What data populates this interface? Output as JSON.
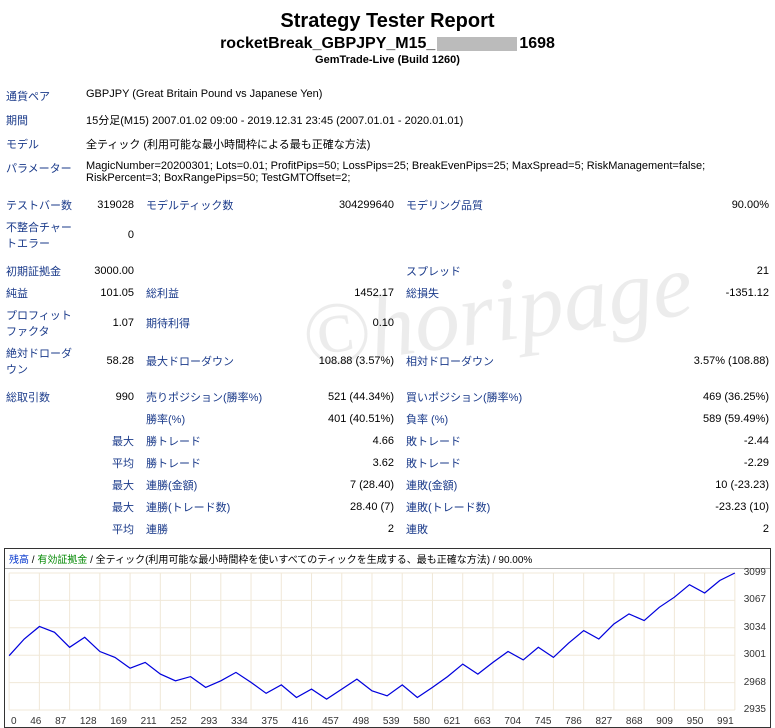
{
  "header": {
    "title": "Strategy Tester Report",
    "subtitle_pre": "rocketBreak_GBPJPY_M15_",
    "subtitle_post": "1698",
    "build": "GemTrade-Live (Build 1260)"
  },
  "info": {
    "pair_label": "通貨ペア",
    "pair_value": "GBPJPY (Great Britain Pound vs Japanese Yen)",
    "period_label": "期間",
    "period_value": "15分足(M15) 2007.01.02 09:00 - 2019.12.31 23:45 (2007.01.01 - 2020.01.01)",
    "model_label": "モデル",
    "model_value": "全ティック (利用可能な最小時間枠による最も正確な方法)",
    "param_label": "パラメーター",
    "param_value": "MagicNumber=20200301; Lots=0.01; ProfitPips=50; LossPips=25; BreakEvenPips=25; MaxSpread=5; RiskManagement=false; RiskPercent=3; BoxRangePips=50; TestGMTOffset=2;"
  },
  "r1": {
    "testbar_l": "テストバー数",
    "testbar_v": "319028",
    "modtick_l": "モデルティック数",
    "modtick_v": "304299640",
    "modq_l": "モデリング品質",
    "modq_v": "90.00%"
  },
  "r2": {
    "mismatch_l": "不整合チャートエラー",
    "mismatch_v": "0"
  },
  "r3": {
    "deposit_l": "初期証拠金",
    "deposit_v": "3000.00",
    "spread_l": "スプレッド",
    "spread_v": "21"
  },
  "r4": {
    "net_l": "純益",
    "net_v": "101.05",
    "gross_l": "総利益",
    "gross_v": "1452.17",
    "loss_l": "総損失",
    "loss_v": "-1351.12"
  },
  "r5": {
    "pf_l": "プロフィットファクタ",
    "pf_v": "1.07",
    "exp_l": "期待利得",
    "exp_v": "0.10"
  },
  "r6": {
    "absdd_l": "絶対ドローダウン",
    "absdd_v": "58.28",
    "maxdd_l": "最大ドローダウン",
    "maxdd_v": "108.88 (3.57%)",
    "reldd_l": "相対ドローダウン",
    "reldd_v": "3.57% (108.88)"
  },
  "r7": {
    "tot_l": "総取引数",
    "tot_v": "990",
    "sell_l": "売りポジション(勝率%)",
    "sell_v": "521 (44.34%)",
    "buy_l": "買いポジション(勝率%)",
    "buy_v": "469 (36.25%)"
  },
  "r8": {
    "win_l": "勝率(%)",
    "win_v": "401 (40.51%)",
    "lose_l": "負率 (%)",
    "lose_v": "589 (59.49%)"
  },
  "r9": {
    "tag": "最大",
    "wt_l": "勝トレード",
    "wt_v": "4.66",
    "lt_l": "敗トレード",
    "lt_v": "-2.44"
  },
  "r10": {
    "tag": "平均",
    "wt_l": "勝トレード",
    "wt_v": "3.62",
    "lt_l": "敗トレード",
    "lt_v": "-2.29"
  },
  "r11": {
    "tag": "最大",
    "cw_l": "連勝(金額)",
    "cw_v": "7 (28.40)",
    "cl_l": "連敗(金額)",
    "cl_v": "10 (-23.23)"
  },
  "r12": {
    "tag": "最大",
    "cw_l": "連勝(トレード数)",
    "cw_v": "28.40 (7)",
    "cl_l": "連敗(トレード数)",
    "cl_v": "-23.23 (10)"
  },
  "r13": {
    "tag": "平均",
    "cw_l": "連勝",
    "cw_v": "2",
    "cl_l": "連敗",
    "cl_v": "2"
  },
  "chart": {
    "legend_bal": "残高",
    "legend_eq": "有効証拠金",
    "legend_rest": "/ 全ティック(利用可能な最小時間枠を使いすべてのティックを生成する、最も正確な方法) / 90.00%",
    "ylabels": [
      "3099",
      "3067",
      "3034",
      "3001",
      "2968",
      "2935"
    ],
    "xlabels": [
      "0",
      "46",
      "87",
      "128",
      "169",
      "211",
      "252",
      "293",
      "334",
      "375",
      "416",
      "457",
      "498",
      "539",
      "580",
      "621",
      "663",
      "704",
      "745",
      "786",
      "827",
      "868",
      "909",
      "950",
      "991"
    ],
    "line_color": "#0000dd",
    "grid_color": "#f0e8d8",
    "ymin": 2935,
    "ymax": 3099,
    "series": [
      3000,
      3020,
      3035,
      3028,
      3010,
      3022,
      3005,
      2998,
      2985,
      2992,
      2978,
      2970,
      2975,
      2962,
      2970,
      2980,
      2968,
      2955,
      2965,
      2950,
      2960,
      2948,
      2960,
      2972,
      2958,
      2952,
      2965,
      2950,
      2962,
      2975,
      2990,
      2978,
      2992,
      3005,
      2995,
      3010,
      2998,
      3015,
      3030,
      3020,
      3038,
      3050,
      3042,
      3058,
      3070,
      3085,
      3075,
      3090,
      3099
    ]
  }
}
